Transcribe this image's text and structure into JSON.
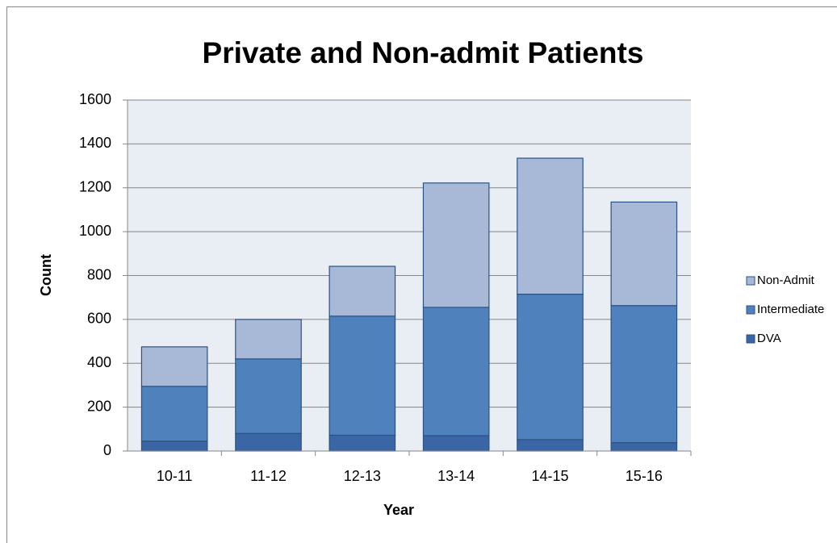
{
  "chart_data": {
    "type": "stacked_bar",
    "title": "Private and Non-admit Patients",
    "xlabel": "Year",
    "ylabel": "Count",
    "categories": [
      "10-11",
      "11-12",
      "12-13",
      "13-14",
      "14-15",
      "15-16"
    ],
    "series": [
      {
        "name": "DVA",
        "color": "#3a66a5",
        "values": [
          45,
          80,
          72,
          70,
          52,
          38
        ]
      },
      {
        "name": "Intermediate",
        "color": "#4f81bd",
        "values": [
          250,
          340,
          543,
          585,
          663,
          625
        ]
      },
      {
        "name": "Non-Admit",
        "color": "#a8b9d8",
        "values": [
          180,
          180,
          227,
          567,
          620,
          472
        ]
      }
    ],
    "ylim": [
      0,
      1600
    ],
    "yticks": [
      0,
      200,
      400,
      600,
      800,
      1000,
      1200,
      1400,
      1600
    ],
    "grid": true,
    "legend": "right"
  }
}
